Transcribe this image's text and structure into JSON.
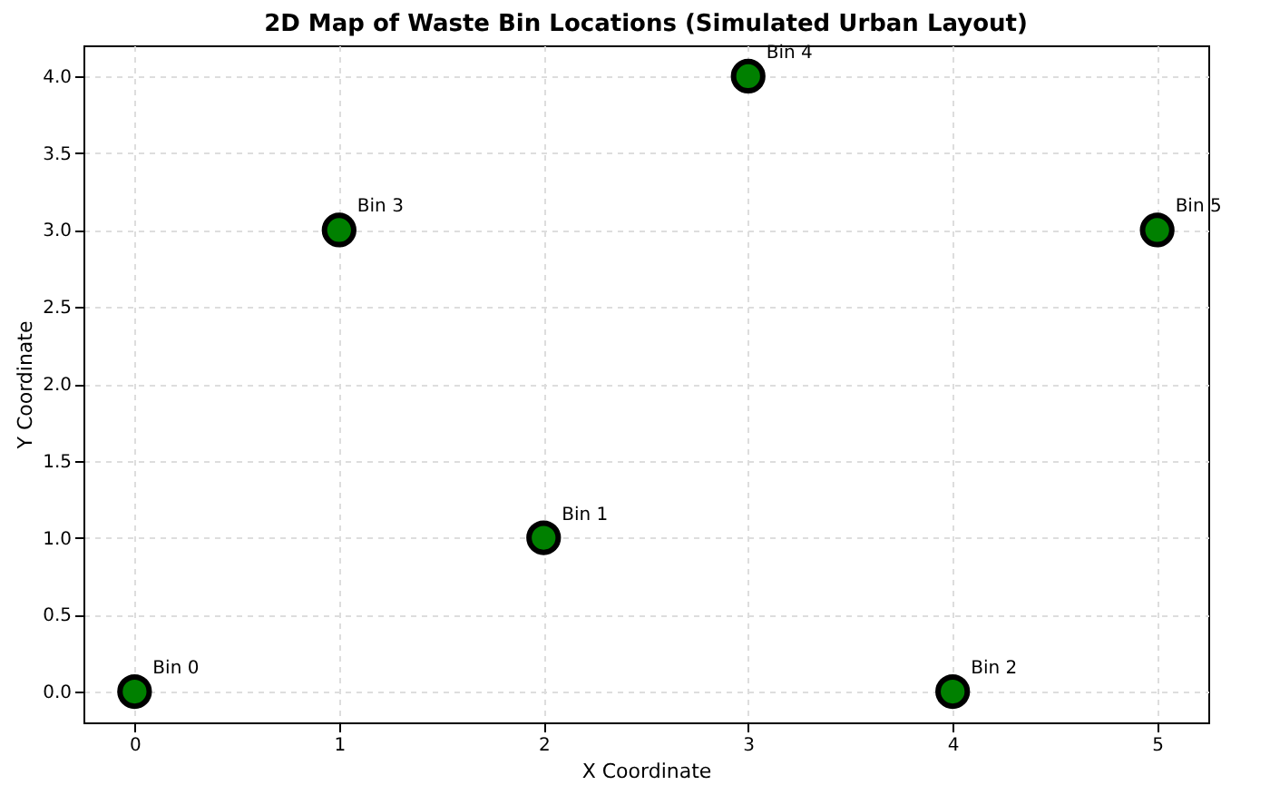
{
  "chart_data": {
    "type": "scatter",
    "title": "2D Map of Waste Bin Locations (Simulated Urban Layout)",
    "xlabel": "X Coordinate",
    "ylabel": "Y Coordinate",
    "x": [
      0,
      2,
      4,
      1,
      3,
      5
    ],
    "series": [
      {
        "color": "#008000",
        "values": [
          0,
          1,
          0,
          3,
          4,
          3
        ]
      }
    ],
    "annotations": [
      {
        "text": "Bin 0",
        "x": 0,
        "y": 0
      },
      {
        "text": "Bin 1",
        "x": 2,
        "y": 1
      },
      {
        "text": "Bin 2",
        "x": 4,
        "y": 0
      },
      {
        "text": "Bin 3",
        "x": 1,
        "y": 3
      },
      {
        "text": "Bin 4",
        "x": 3,
        "y": 4
      },
      {
        "text": "Bin 5",
        "x": 5,
        "y": 3
      }
    ],
    "xlim": [
      -0.25,
      5.25
    ],
    "ylim": [
      -0.2,
      4.2
    ],
    "xticks": [
      0,
      1,
      2,
      3,
      4,
      5
    ],
    "yticks": [
      {
        "value": 0,
        "label": "0.0"
      },
      0.5,
      {
        "value": 1,
        "label": "1.0"
      },
      1.5,
      {
        "value": 2,
        "label": "2.0"
      },
      2.5,
      {
        "value": 3,
        "label": "3.0"
      },
      3.5,
      {
        "value": 4,
        "label": "4.0"
      }
    ],
    "grid": true,
    "marker": "circle"
  }
}
